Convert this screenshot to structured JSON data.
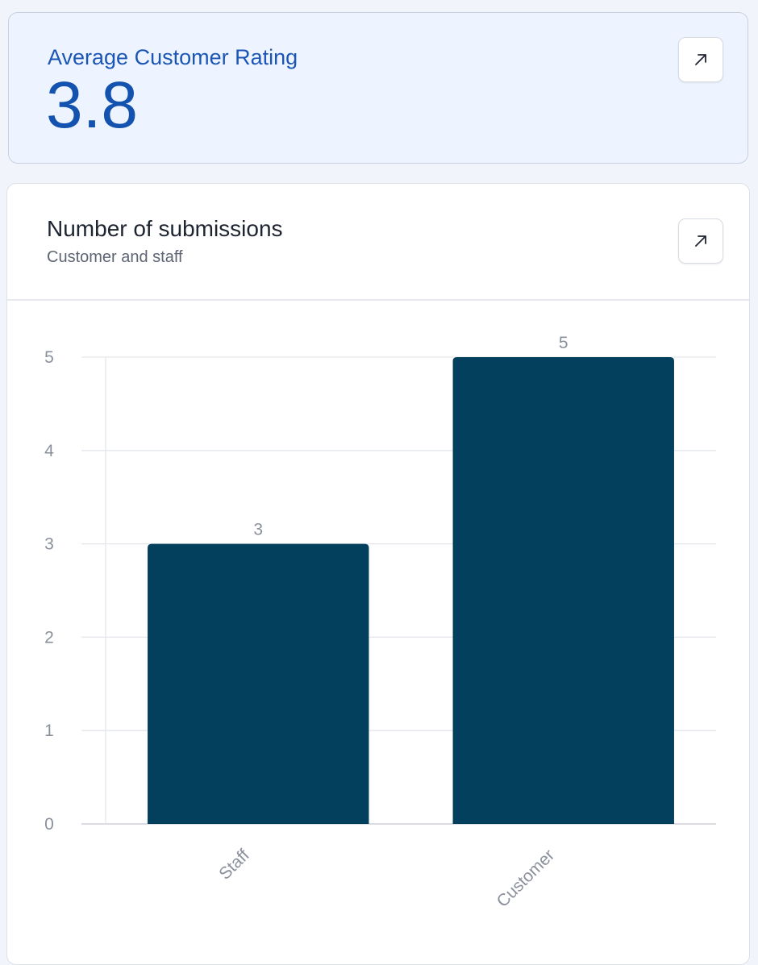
{
  "kpi": {
    "label": "Average Customer Rating",
    "value": "3.8",
    "expand_icon": "arrow-up-right-icon"
  },
  "submissions_card": {
    "title": "Number of submissions",
    "subtitle": "Customer and staff",
    "expand_icon": "arrow-up-right-icon"
  },
  "colors": {
    "accent": "#1452b0",
    "bar": "#02405e"
  },
  "chart_data": {
    "type": "bar",
    "title": "Number of submissions",
    "subtitle": "Customer and staff",
    "categories": [
      "Staff",
      "Customer"
    ],
    "values": [
      3,
      5
    ],
    "data_labels": [
      "3",
      "5"
    ],
    "y_ticks": [
      "0",
      "1",
      "2",
      "3",
      "4",
      "5"
    ],
    "ylim": [
      0,
      5
    ],
    "xlabel": "",
    "ylabel": "",
    "grid": true,
    "legend": "none"
  }
}
